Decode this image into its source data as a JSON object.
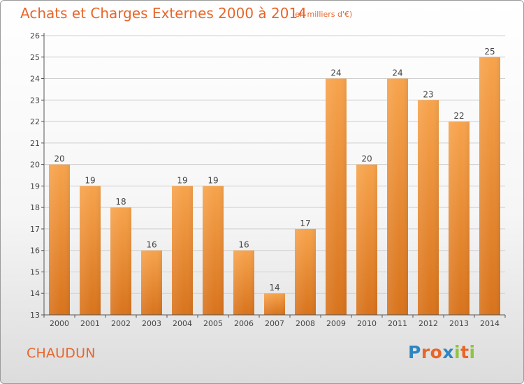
{
  "header": {
    "title": "Achats et Charges Externes 2000 à 2014",
    "subtitle": "(en milliers d'€)"
  },
  "footer": {
    "town": "CHAUDUN",
    "logo_text": "Proxiti",
    "logo_colors": [
      "#2e86c1",
      "#e8652a",
      "#e8652a",
      "#2e86c1",
      "#8cc63f",
      "#e8652a",
      "#8cc63f"
    ]
  },
  "colors": {
    "accent": "#e8652a",
    "bar_top": "#f7a34c",
    "bar_bottom": "#d8731c",
    "axis": "#555555",
    "grid": "#cfcfcf"
  },
  "chart_data": {
    "type": "bar",
    "categories": [
      "2000",
      "2001",
      "2002",
      "2003",
      "2004",
      "2005",
      "2006",
      "2007",
      "2008",
      "2009",
      "2010",
      "2011",
      "2012",
      "2013",
      "2014"
    ],
    "values": [
      20,
      19,
      18,
      16,
      19,
      19,
      16,
      14,
      17,
      24,
      20,
      24,
      23,
      22,
      25
    ],
    "data_labels": [
      "20",
      "19",
      "18",
      "16",
      "19",
      "19",
      "16",
      "14",
      "17",
      "24",
      "20",
      "24",
      "23",
      "22",
      "25"
    ],
    "yticks": [
      "13",
      "14",
      "15",
      "16",
      "17",
      "18",
      "19",
      "20",
      "21",
      "22",
      "23",
      "24",
      "25",
      "26"
    ],
    "ylim": [
      13,
      26
    ],
    "grid": true,
    "legend": "none"
  }
}
